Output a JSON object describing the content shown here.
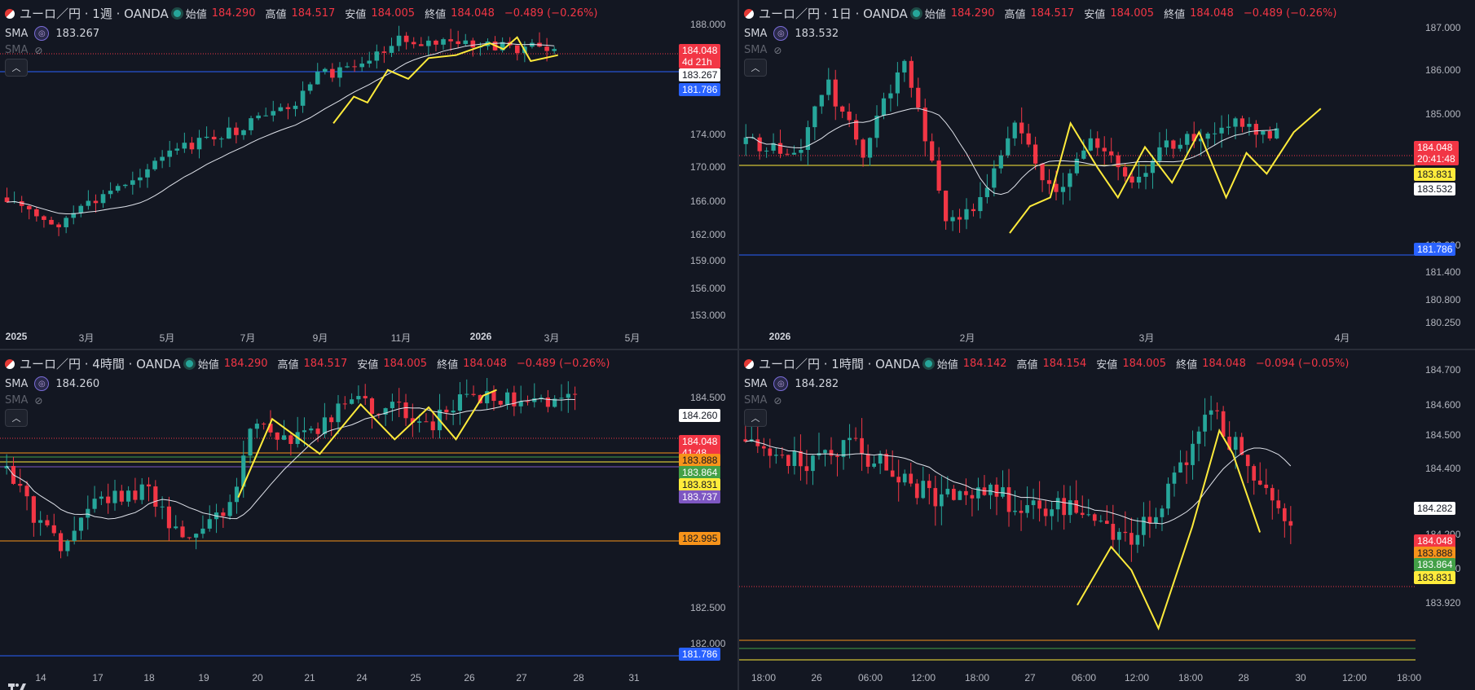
{
  "panes": [
    {
      "id": "weekly",
      "header": {
        "symbol": "ユーロ／円 · 1週 · OANDA",
        "open_label": "始値",
        "open": "184.290",
        "high_label": "高値",
        "high": "184.517",
        "low_label": "安値",
        "low": "184.005",
        "close_label": "終値",
        "close": "184.048",
        "change": "−0.489 (−0.26%)"
      },
      "sma": {
        "label": "SMA",
        "value": "183.267",
        "label2": "SMA"
      },
      "y_ticks": [
        "188.000",
        "174.000",
        "170.000",
        "166.000",
        "162.000",
        "159.000",
        "156.000",
        "153.000"
      ],
      "x_ticks": [
        {
          "t": "2025",
          "bold": true
        },
        {
          "t": "3月"
        },
        {
          "t": "5月"
        },
        {
          "t": "7月"
        },
        {
          "t": "9月"
        },
        {
          "t": "11月"
        },
        {
          "t": "2026",
          "bold": true
        },
        {
          "t": "3月"
        },
        {
          "t": "5月"
        }
      ],
      "price_tags": [
        {
          "text": "184.048",
          "sub": "4d 21h",
          "bg": "#f23645",
          "fg": "#ffffff"
        },
        {
          "text": "183.267",
          "bg": "#ffffff",
          "fg": "#131722"
        },
        {
          "text": "181.786",
          "bg": "#2962ff",
          "fg": "#ffffff"
        }
      ]
    },
    {
      "id": "daily",
      "header": {
        "symbol": "ユーロ／円 · 1日 · OANDA",
        "open_label": "始値",
        "open": "184.290",
        "high_label": "高値",
        "high": "184.517",
        "low_label": "安値",
        "low": "184.005",
        "close_label": "終値",
        "close": "184.048",
        "change": "−0.489 (−0.26%)"
      },
      "sma": {
        "label": "SMA",
        "value": "183.532",
        "label2": "SMA"
      },
      "y_ticks": [
        "187.000",
        "186.000",
        "185.000",
        "182.000",
        "181.400",
        "180.800",
        "180.250"
      ],
      "x_ticks": [
        {
          "t": "2026",
          "bold": true
        },
        {
          "t": "2月"
        },
        {
          "t": "3月"
        },
        {
          "t": "4月"
        }
      ],
      "price_tags": [
        {
          "text": "184.048",
          "sub": "20:41:48",
          "bg": "#f23645",
          "fg": "#ffffff"
        },
        {
          "text": "183.831",
          "bg": "#ffeb3b",
          "fg": "#131722"
        },
        {
          "text": "183.532",
          "bg": "#ffffff",
          "fg": "#131722"
        },
        {
          "text": "181.786",
          "bg": "#2962ff",
          "fg": "#ffffff"
        }
      ]
    },
    {
      "id": "h4",
      "header": {
        "symbol": "ユーロ／円 · 4時間 · OANDA",
        "open_label": "始値",
        "open": "184.290",
        "high_label": "高値",
        "high": "184.517",
        "low_label": "安値",
        "low": "184.005",
        "close_label": "終値",
        "close": "184.048",
        "change": "−0.489 (−0.26%)"
      },
      "sma": {
        "label": "SMA",
        "value": "184.260",
        "label2": "SMA"
      },
      "y_ticks": [
        "184.500",
        "182.500",
        "182.000"
      ],
      "x_ticks": [
        {
          "t": "14"
        },
        {
          "t": "17"
        },
        {
          "t": "18"
        },
        {
          "t": "19"
        },
        {
          "t": "20"
        },
        {
          "t": "21"
        },
        {
          "t": "24"
        },
        {
          "t": "25"
        },
        {
          "t": "26"
        },
        {
          "t": "27"
        },
        {
          "t": "28"
        },
        {
          "t": "31"
        }
      ],
      "price_tags": [
        {
          "text": "184.260",
          "bg": "#ffffff",
          "fg": "#131722"
        },
        {
          "text": "184.048",
          "sub": "41:48",
          "bg": "#f23645",
          "fg": "#ffffff"
        },
        {
          "text": "183.888",
          "bg": "#f7931a",
          "fg": "#131722"
        },
        {
          "text": "183.864",
          "bg": "#43a047",
          "fg": "#ffffff"
        },
        {
          "text": "183.831",
          "bg": "#ffeb3b",
          "fg": "#131722"
        },
        {
          "text": "183.737",
          "bg": "#7e57c2",
          "fg": "#ffffff"
        },
        {
          "text": "182.995",
          "bg": "#f7931a",
          "fg": "#131722"
        },
        {
          "text": "181.786",
          "bg": "#2962ff",
          "fg": "#ffffff"
        }
      ]
    },
    {
      "id": "h1",
      "header": {
        "symbol": "ユーロ／円 · 1時間 · OANDA",
        "open_label": "始値",
        "open": "184.142",
        "high_label": "高値",
        "high": "184.154",
        "low_label": "安値",
        "low": "184.005",
        "close_label": "終値",
        "close": "184.048",
        "change": "−0.094 (−0.05%)"
      },
      "sma": {
        "label": "SMA",
        "value": "184.282",
        "label2": "SMA"
      },
      "y_ticks": [
        "184.700",
        "184.600",
        "184.500",
        "184.400",
        "184.200",
        "184.100",
        "183.920"
      ],
      "x_ticks": [
        {
          "t": "18:00"
        },
        {
          "t": "26"
        },
        {
          "t": "06:00"
        },
        {
          "t": "12:00"
        },
        {
          "t": "18:00"
        },
        {
          "t": "27"
        },
        {
          "t": "06:00"
        },
        {
          "t": "12:00"
        },
        {
          "t": "18:00"
        },
        {
          "t": "28"
        },
        {
          "t": "30"
        },
        {
          "t": "12:00"
        },
        {
          "t": "18:00"
        }
      ],
      "price_tags": [
        {
          "text": "184.282",
          "bg": "#ffffff",
          "fg": "#131722"
        },
        {
          "text": "184.048",
          "sub": "41:48",
          "bg": "#f23645",
          "fg": "#ffffff"
        },
        {
          "text": "183.888",
          "bg": "#f7931a",
          "fg": "#131722"
        },
        {
          "text": "183.864",
          "bg": "#43a047",
          "fg": "#ffffff"
        },
        {
          "text": "183.831",
          "bg": "#ffeb3b",
          "fg": "#131722"
        }
      ]
    }
  ],
  "chart_data": [
    {
      "type": "candlestick",
      "title": "ユーロ／円 · 1週 · OANDA",
      "series": [
        {
          "name": "SMA",
          "last": 183.267
        }
      ],
      "ohlc_last": {
        "open": 184.29,
        "high": 184.517,
        "low": 184.005,
        "close": 184.048
      }
    },
    {
      "type": "candlestick",
      "title": "ユーロ／円 · 1日 · OANDA",
      "series": [
        {
          "name": "SMA",
          "last": 183.532
        }
      ],
      "ohlc_last": {
        "open": 184.29,
        "high": 184.517,
        "low": 184.005,
        "close": 184.048
      }
    },
    {
      "type": "candlestick",
      "title": "ユーロ／円 · 4時間 · OANDA",
      "series": [
        {
          "name": "SMA",
          "last": 184.26
        }
      ],
      "ohlc_last": {
        "open": 184.29,
        "high": 184.517,
        "low": 184.005,
        "close": 184.048
      }
    },
    {
      "type": "candlestick",
      "title": "ユーロ／円 · 1時間 · OANDA",
      "series": [
        {
          "name": "SMA",
          "last": 184.282
        }
      ],
      "ohlc_last": {
        "open": 184.142,
        "high": 184.154,
        "low": 184.005,
        "close": 184.048
      }
    }
  ],
  "colors": {
    "up": "#26a69a",
    "down": "#f23645",
    "sma": "#e0e3eb",
    "zigzag": "#ffeb3b",
    "bg": "#131722"
  }
}
